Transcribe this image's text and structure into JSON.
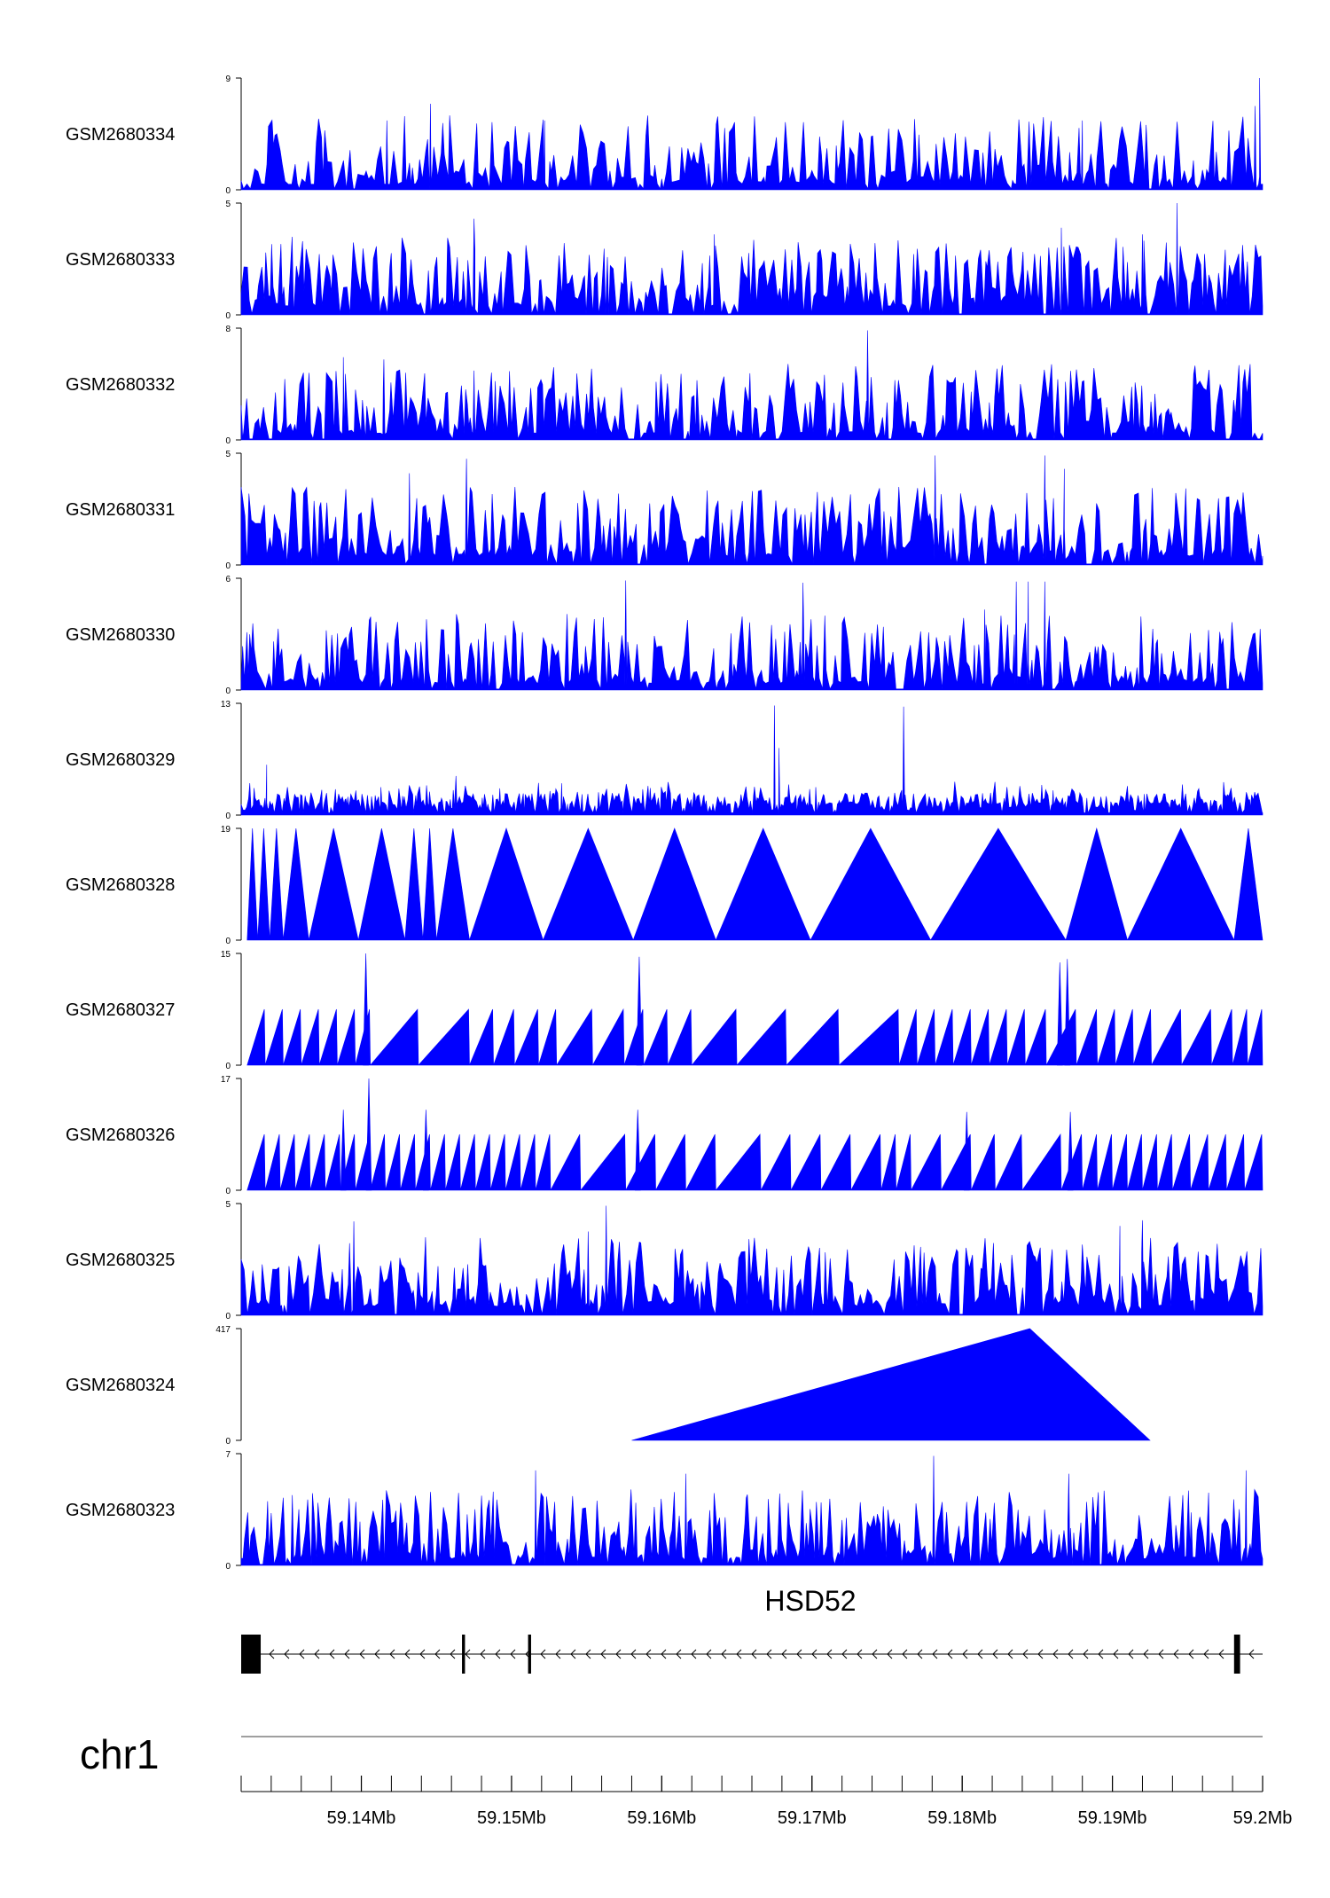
{
  "chart_data": {
    "type": "area",
    "series_color": "#0000ff",
    "x_unit": "Mb",
    "xlim": [
      59.132,
      59.2
    ],
    "tracks": [
      {
        "name": "GSM2680334",
        "ylim": [
          0,
          9
        ],
        "seed": 11,
        "style": "noise",
        "density": 3.0,
        "exponent": 2.3,
        "baseline": 0.05,
        "spikes": [
          [
            59.1417,
            0.62
          ],
          [
            59.1446,
            0.77
          ],
          [
            59.1522,
            0.62
          ],
          [
            59.188,
            0.62
          ],
          [
            59.1998,
            1.0
          ],
          [
            59.1995,
            0.75
          ]
        ]
      },
      {
        "name": "GSM2680333",
        "ylim": [
          0,
          5
        ],
        "seed": 23,
        "style": "noise",
        "density": 2.8,
        "exponent": 1.7,
        "baseline": 0.08,
        "spikes": [
          [
            59.1475,
            0.86
          ],
          [
            59.1635,
            0.72
          ],
          [
            59.1943,
            1.0
          ],
          [
            59.192,
            0.72
          ],
          [
            59.1866,
            0.78
          ]
        ]
      },
      {
        "name": "GSM2680332",
        "ylim": [
          0,
          8
        ],
        "seed": 37,
        "style": "noise",
        "density": 2.7,
        "exponent": 2.0,
        "baseline": 0.06,
        "spikes": [
          [
            59.1415,
            0.72
          ],
          [
            59.1475,
            0.62
          ],
          [
            59.1737,
            0.98
          ],
          [
            59.1388,
            0.74
          ]
        ]
      },
      {
        "name": "GSM2680331",
        "ylim": [
          0,
          5
        ],
        "seed": 41,
        "style": "noise",
        "density": 2.9,
        "exponent": 1.6,
        "baseline": 0.08,
        "spikes": [
          [
            59.147,
            0.95
          ],
          [
            59.1782,
            0.98
          ],
          [
            59.1855,
            0.98
          ],
          [
            59.1868,
            0.86
          ],
          [
            59.1432,
            0.82
          ]
        ]
      },
      {
        "name": "GSM2680330",
        "ylim": [
          0,
          6
        ],
        "seed": 53,
        "style": "noise",
        "density": 2.7,
        "exponent": 1.8,
        "baseline": 0.06,
        "spikes": [
          [
            59.1576,
            0.98
          ],
          [
            59.1694,
            0.96
          ],
          [
            59.1836,
            0.97
          ],
          [
            59.1844,
            0.97
          ],
          [
            59.1855,
            0.97
          ],
          [
            59.1815,
            0.72
          ]
        ]
      },
      {
        "name": "GSM2680329",
        "ylim": [
          0,
          13
        ],
        "seed": 67,
        "style": "peaks",
        "density": 1.7,
        "exponent": 2.4,
        "baseline": 0.02,
        "spikes": [
          [
            59.1337,
            0.45
          ],
          [
            59.1675,
            0.98
          ],
          [
            59.1678,
            0.6
          ],
          [
            59.1761,
            0.97
          ],
          [
            59.1413,
            0.25
          ],
          [
            59.1463,
            0.35
          ]
        ]
      },
      {
        "name": "GSM2680328",
        "ylim": [
          0,
          19
        ],
        "style": "triangles",
        "breaks": [
          59.1324,
          59.1331,
          59.1339,
          59.1348,
          59.1365,
          59.1398,
          59.1429,
          59.1441,
          59.145,
          59.1472,
          59.1521,
          59.1581,
          59.1636,
          59.1699,
          59.1779,
          59.1869,
          59.191,
          59.1981,
          59.2
        ]
      },
      {
        "name": "GSM2680327",
        "ylim": [
          0,
          15
        ],
        "style": "triangles",
        "breaks": [
          59.1324,
          59.1336,
          59.1348,
          59.136,
          59.1372,
          59.1384,
          59.1396,
          59.1406,
          59.1438,
          59.1472,
          59.1488,
          59.1502,
          59.1518,
          59.153,
          59.1554,
          59.1575,
          59.1588,
          59.1604,
          59.162,
          59.165,
          59.1683,
          59.1718,
          59.1758,
          59.177,
          59.1782,
          59.1794,
          59.1806,
          59.1818,
          59.183,
          59.1842,
          59.1856,
          59.1876,
          59.189,
          59.1902,
          59.1914,
          59.1926,
          59.1946,
          59.1966,
          59.198,
          59.199,
          59.2
        ],
        "spikes": [
          [
            59.1403,
            1.0
          ],
          [
            59.1585,
            0.97
          ],
          [
            59.1865,
            0.92
          ],
          [
            59.187,
            0.95
          ]
        ]
      },
      {
        "name": "GSM2680326",
        "ylim": [
          0,
          17
        ],
        "seed": 71,
        "style": "triangles",
        "breaks": [
          59.1324,
          59.1336,
          59.1346,
          59.1356,
          59.1366,
          59.1376,
          59.1386,
          59.1396,
          59.1406,
          59.1416,
          59.1426,
          59.1436,
          59.1446,
          59.1456,
          59.1466,
          59.1476,
          59.1486,
          59.1496,
          59.1506,
          59.1516,
          59.1526,
          59.1546,
          59.1576,
          59.1596,
          59.1616,
          59.1636,
          59.1666,
          59.1686,
          59.1706,
          59.1726,
          59.1746,
          59.1756,
          59.1766,
          59.1786,
          59.1806,
          59.1822,
          59.184,
          59.1866,
          59.188,
          59.189,
          59.19,
          59.191,
          59.192,
          59.193,
          59.194,
          59.1952,
          59.1964,
          59.1976,
          59.1988,
          59.2
        ],
        "spikes": [
          [
            59.1388,
            0.72
          ],
          [
            59.1405,
            1.0
          ],
          [
            59.1443,
            0.72
          ],
          [
            59.1584,
            0.72
          ],
          [
            59.1803,
            0.7
          ],
          [
            59.1872,
            0.7
          ]
        ]
      },
      {
        "name": "GSM2680325",
        "ylim": [
          0,
          5
        ],
        "seed": 83,
        "style": "noise",
        "density": 2.8,
        "exponent": 1.8,
        "baseline": 0.08,
        "spikes": [
          [
            59.1395,
            0.84
          ],
          [
            59.1563,
            0.98
          ],
          [
            59.1551,
            0.75
          ],
          [
            59.192,
            0.85
          ],
          [
            59.1905,
            0.8
          ]
        ]
      },
      {
        "name": "GSM2680324",
        "ylim": [
          0,
          417
        ],
        "style": "single",
        "points": [
          [
            59.158,
            0
          ],
          [
            59.1845,
            417
          ],
          [
            59.1925,
            0
          ]
        ]
      },
      {
        "name": "GSM2680323",
        "ylim": [
          0,
          7
        ],
        "seed": 97,
        "style": "noise",
        "density": 2.6,
        "exponent": 1.9,
        "baseline": 0.06,
        "spikes": [
          [
            59.1516,
            0.85
          ],
          [
            59.1781,
            0.98
          ],
          [
            59.1871,
            0.82
          ],
          [
            59.1989,
            0.85
          ],
          [
            59.1616,
            0.82
          ]
        ]
      }
    ],
    "gene": {
      "name": "HSD52",
      "strand": "-",
      "exons": [
        [
          59.132,
          59.1333
        ],
        [
          59.1467,
          59.1469
        ],
        [
          59.1511,
          59.1513
        ],
        [
          59.1981,
          59.1985
        ]
      ]
    },
    "chromosome": "chr1",
    "xticks": [
      59.14,
      59.15,
      59.16,
      59.17,
      59.18,
      59.19,
      59.2
    ],
    "xtick_labels": [
      "59.14Mb",
      "59.15Mb",
      "59.16Mb",
      "59.17Mb",
      "59.18Mb",
      "59.19Mb",
      "59.2Mb"
    ],
    "minor_tick_step": 0.002
  }
}
